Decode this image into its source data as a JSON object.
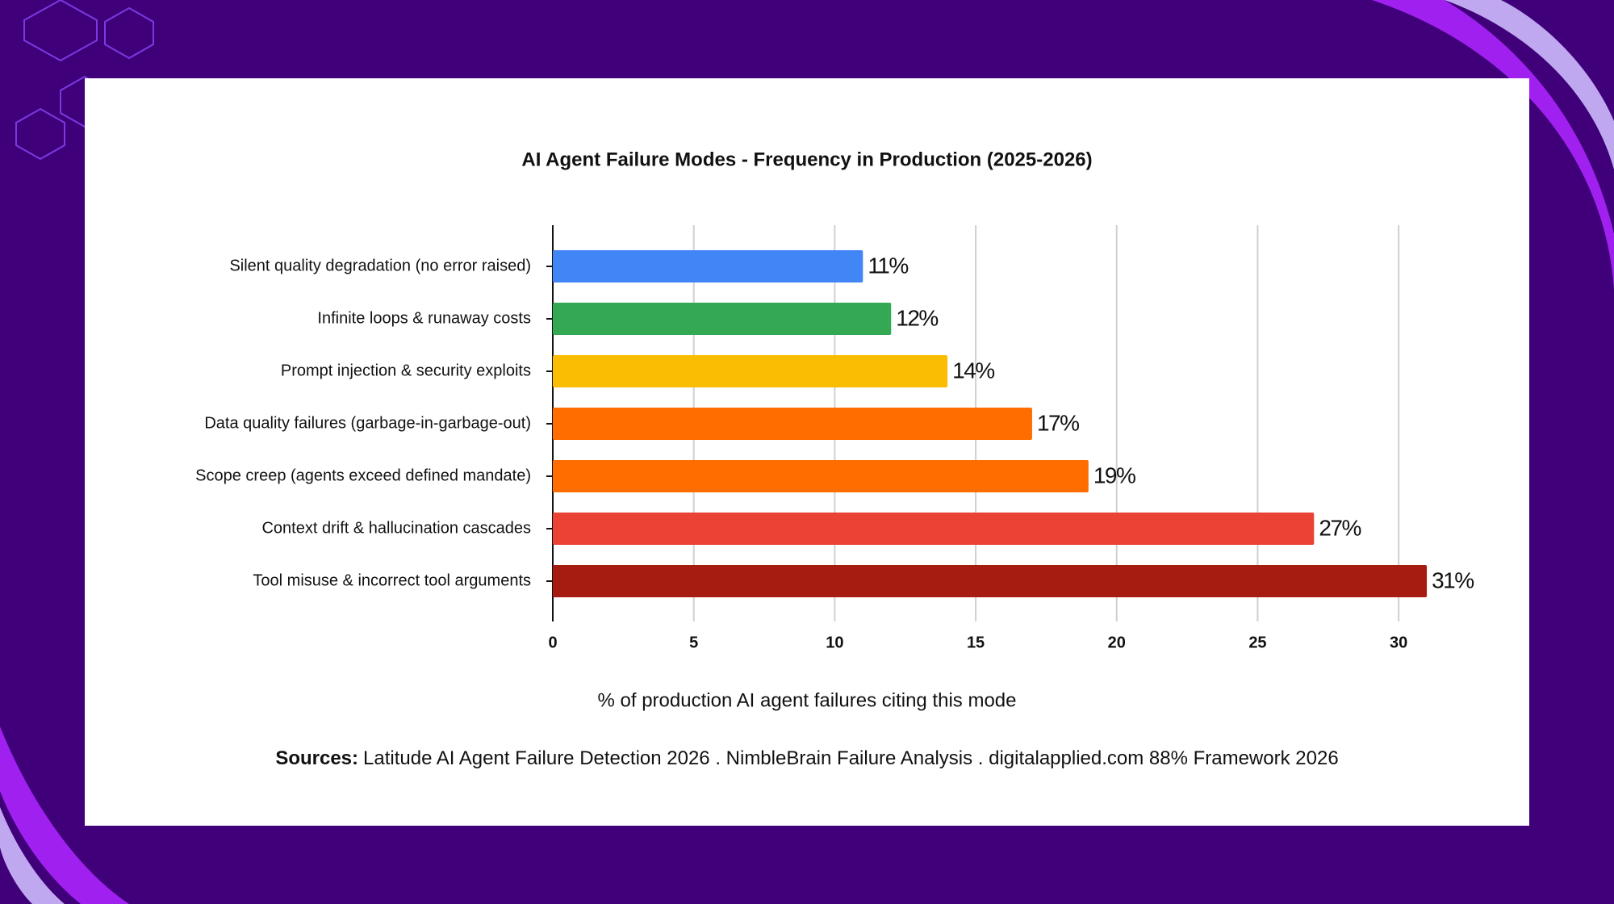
{
  "chart_data": {
    "type": "barh",
    "title": "AI Agent Failure Modes - Frequency in Production (2025-2026)",
    "categories": [
      "Silent quality degradation (no error raised)",
      "Infinite loops & runaway costs",
      "Prompt injection & security exploits",
      "Data quality failures (garbage-in-garbage-out)",
      "Scope creep (agents exceed defined mandate)",
      "Context drift & hallucination cascades",
      "Tool misuse & incorrect tool arguments"
    ],
    "values": [
      11,
      12,
      14,
      17,
      19,
      27,
      31
    ],
    "value_labels": [
      "11%",
      "12%",
      "14%",
      "17%",
      "19%",
      "27%",
      "31%"
    ],
    "colors": [
      "#4285f4",
      "#34a853",
      "#fbbc04",
      "#ff6d01",
      "#ff6d01",
      "#ea4335",
      "#a61c10"
    ],
    "xlim": [
      0,
      32
    ],
    "xticks": [
      0,
      5,
      10,
      15,
      20,
      25,
      30
    ],
    "grid": true,
    "x_label": "% of production AI agent failures citing this mode",
    "source_label": "Sources:",
    "source_text": "Latitude AI Agent Failure Detection 2026 . NimbleBrain Failure Analysis . digitalapplied.com 88% Framework 2026"
  }
}
